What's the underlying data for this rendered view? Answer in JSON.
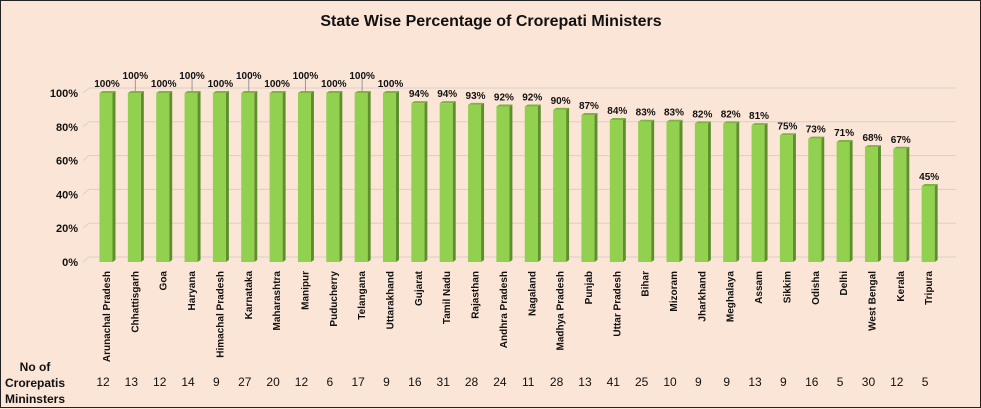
{
  "chart_data": {
    "type": "bar",
    "title": "State Wise Percentage of Crorepati Ministers",
    "xlabel": "",
    "ylabel": "",
    "ylim": [
      0,
      100
    ],
    "yticks": [
      "0%",
      "20%",
      "40%",
      "60%",
      "80%",
      "100%"
    ],
    "grid": true,
    "categories": [
      "Arunachal Pradesh",
      "Chhattisgarh",
      "Goa",
      "Haryana",
      "Himachal Pradesh",
      "Karnataka",
      "Maharashtra",
      "Manipur",
      "Puducherry",
      "Telangana",
      "Uttarakhand",
      "Gujarat",
      "Tamil Nadu",
      "Rajasthan",
      "Andhra Pradesh",
      "Nagaland",
      "Madhya Pradesh",
      "Punjab",
      "Uttar Pradesh",
      "Bihar",
      "Mizoram",
      "Jharkhand",
      "Meghalaya",
      "Assam",
      "Sikkim",
      "Odisha",
      "Delhi",
      "West Bengal",
      "Kerala",
      "Tripura"
    ],
    "values": [
      100,
      100,
      100,
      100,
      100,
      100,
      100,
      100,
      100,
      100,
      100,
      94,
      94,
      93,
      92,
      92,
      90,
      87,
      84,
      83,
      83,
      82,
      82,
      81,
      75,
      73,
      71,
      68,
      67,
      45
    ],
    "data_labels": [
      "100%",
      "100%",
      "100%",
      "100%",
      "100%",
      "100%",
      "100%",
      "100%",
      "100%",
      "100%",
      "100%",
      "94%",
      "94%",
      "93%",
      "92%",
      "92%",
      "90%",
      "87%",
      "84%",
      "83%",
      "83%",
      "82%",
      "82%",
      "81%",
      "75%",
      "73%",
      "71%",
      "68%",
      "67%",
      "45%"
    ],
    "table_row_label": [
      "No of",
      "Crorepatis",
      "Mininsters"
    ],
    "counts": [
      "12",
      "13",
      "12",
      "14",
      "9",
      "27",
      "20",
      "12",
      "6",
      "17",
      "9",
      "16",
      "31",
      "28",
      "24",
      "11",
      "28",
      "13",
      "41",
      "25",
      "10",
      "9",
      "9",
      "13",
      "9",
      "16",
      "5",
      "30",
      "12",
      "5"
    ],
    "bar_color": "#92d050",
    "bar_side_color": "#5e8f2c"
  }
}
